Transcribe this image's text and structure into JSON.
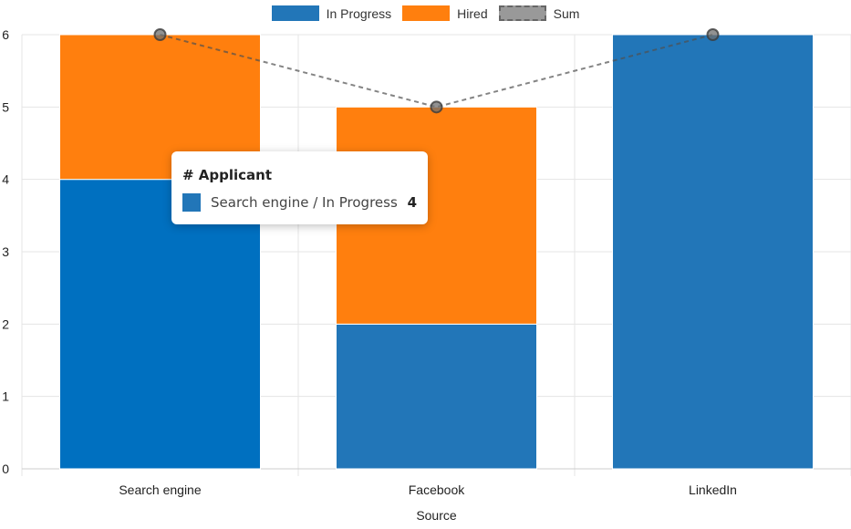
{
  "chart_data": {
    "type": "bar",
    "stacked": true,
    "categories": [
      "Search engine",
      "Facebook",
      "LinkedIn"
    ],
    "series": [
      {
        "name": "In Progress",
        "values": [
          4,
          2,
          6
        ],
        "color": "#2276b8"
      },
      {
        "name": "Hired",
        "values": [
          2,
          3,
          0
        ],
        "color": "#ff7f0e"
      },
      {
        "name": "Sum",
        "type": "line",
        "values": [
          6,
          5,
          6
        ],
        "color": "#999999",
        "dashed": true
      }
    ],
    "xlabel": "Source",
    "ylabel": "",
    "ylim": [
      0,
      6
    ],
    "yticks": [
      "0",
      "1",
      "2",
      "3",
      "4",
      "5",
      "6"
    ],
    "grid": true,
    "legend": "top",
    "highlight_color": "#0070c0"
  },
  "tooltip": {
    "title": "# Applicant",
    "label": "Search engine / In Progress",
    "value": "4"
  }
}
